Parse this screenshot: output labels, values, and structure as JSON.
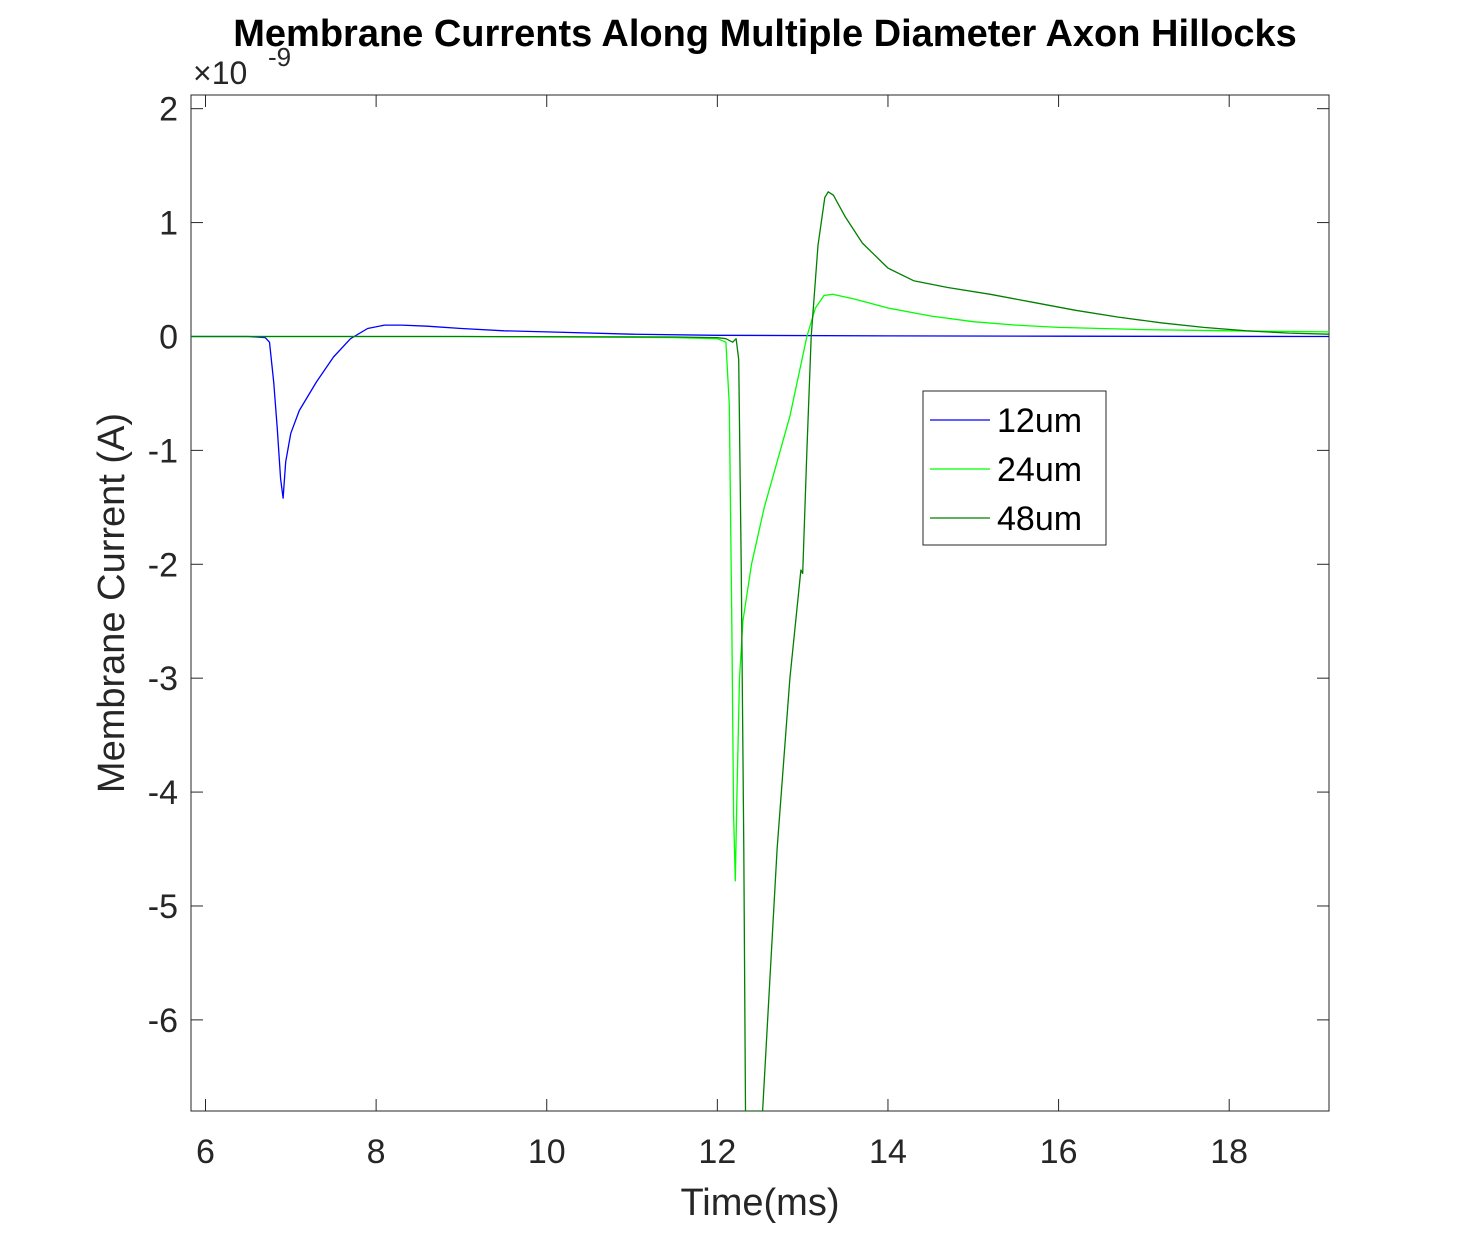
{
  "chart_data": {
    "type": "line",
    "title": "Membrane Currents Along Multiple Diameter Axon Hillocks",
    "xlabel": "Time(ms)",
    "ylabel": "Membrane Current (A)",
    "y_exponent_base": "×10",
    "y_exponent_power": "-9",
    "xlim": [
      5.83,
      19.17
    ],
    "ylim": [
      -6.8,
      2.12
    ],
    "x_ticks": [
      6,
      8,
      10,
      12,
      14,
      16,
      18
    ],
    "x_tick_labels": [
      "6",
      "8",
      "10",
      "12",
      "14",
      "16",
      "18"
    ],
    "y_ticks": [
      -6,
      -5,
      -4,
      -3,
      -2,
      -1,
      0,
      1,
      2
    ],
    "y_tick_labels": [
      "-6",
      "-5",
      "-4",
      "-3",
      "-2",
      "-1",
      "0",
      "1",
      "2"
    ],
    "grid": false,
    "legend_position": "upper-right-inside",
    "series": [
      {
        "name": "12um",
        "color": "#0000ff",
        "points": [
          [
            5.83,
            0
          ],
          [
            6.5,
            0
          ],
          [
            6.7,
            -0.01
          ],
          [
            6.75,
            -0.05
          ],
          [
            6.8,
            -0.4
          ],
          [
            6.84,
            -0.8
          ],
          [
            6.88,
            -1.25
          ],
          [
            6.91,
            -1.42
          ],
          [
            6.94,
            -1.1
          ],
          [
            7.0,
            -0.85
          ],
          [
            7.1,
            -0.65
          ],
          [
            7.3,
            -0.4
          ],
          [
            7.5,
            -0.18
          ],
          [
            7.7,
            -0.02
          ],
          [
            7.9,
            0.07
          ],
          [
            8.1,
            0.1
          ],
          [
            8.3,
            0.1
          ],
          [
            8.6,
            0.09
          ],
          [
            9.0,
            0.07
          ],
          [
            9.5,
            0.05
          ],
          [
            10.0,
            0.04
          ],
          [
            11.0,
            0.02
          ],
          [
            12.0,
            0.01
          ],
          [
            14.0,
            0.005
          ],
          [
            16.0,
            0.002
          ],
          [
            19.17,
            0
          ]
        ]
      },
      {
        "name": "24um",
        "color": "#00ff00",
        "points": [
          [
            5.83,
            0
          ],
          [
            9.0,
            0
          ],
          [
            11.5,
            -0.01
          ],
          [
            12.0,
            -0.02
          ],
          [
            12.1,
            -0.05
          ],
          [
            12.14,
            -0.6
          ],
          [
            12.17,
            -2.5
          ],
          [
            12.19,
            -4.2
          ],
          [
            12.21,
            -4.78
          ],
          [
            12.23,
            -4.0
          ],
          [
            12.26,
            -3.0
          ],
          [
            12.3,
            -2.5
          ],
          [
            12.4,
            -2.0
          ],
          [
            12.55,
            -1.5
          ],
          [
            12.7,
            -1.1
          ],
          [
            12.85,
            -0.7
          ],
          [
            12.95,
            -0.35
          ],
          [
            13.05,
            0.0
          ],
          [
            13.15,
            0.25
          ],
          [
            13.25,
            0.36
          ],
          [
            13.35,
            0.37
          ],
          [
            13.6,
            0.33
          ],
          [
            14.0,
            0.25
          ],
          [
            14.5,
            0.18
          ],
          [
            15.0,
            0.13
          ],
          [
            15.5,
            0.1
          ],
          [
            16.0,
            0.08
          ],
          [
            17.0,
            0.06
          ],
          [
            18.0,
            0.05
          ],
          [
            19.17,
            0.04
          ]
        ]
      },
      {
        "name": "48um",
        "color": "#008000",
        "points": [
          [
            5.83,
            0
          ],
          [
            9.0,
            0
          ],
          [
            11.5,
            -0.005
          ],
          [
            12.0,
            -0.01
          ],
          [
            12.1,
            -0.02
          ],
          [
            12.18,
            -0.05
          ],
          [
            12.22,
            -0.02
          ],
          [
            12.25,
            -0.2
          ],
          [
            12.28,
            -2.0
          ],
          [
            12.31,
            -4.5
          ],
          [
            12.33,
            -6.8
          ],
          [
            12.53,
            -6.8
          ],
          [
            12.7,
            -4.5
          ],
          [
            12.85,
            -3.0
          ],
          [
            12.98,
            -2.05
          ],
          [
            13.0,
            -2.08
          ],
          [
            13.05,
            -1.0
          ],
          [
            13.1,
            0.0
          ],
          [
            13.18,
            0.8
          ],
          [
            13.26,
            1.22
          ],
          [
            13.3,
            1.27
          ],
          [
            13.36,
            1.24
          ],
          [
            13.5,
            1.05
          ],
          [
            13.7,
            0.82
          ],
          [
            14.0,
            0.6
          ],
          [
            14.3,
            0.49
          ],
          [
            14.7,
            0.43
          ],
          [
            15.2,
            0.37
          ],
          [
            15.7,
            0.3
          ],
          [
            16.2,
            0.23
          ],
          [
            16.7,
            0.17
          ],
          [
            17.2,
            0.12
          ],
          [
            17.7,
            0.08
          ],
          [
            18.2,
            0.05
          ],
          [
            18.7,
            0.03
          ],
          [
            19.17,
            0.02
          ]
        ]
      }
    ]
  }
}
